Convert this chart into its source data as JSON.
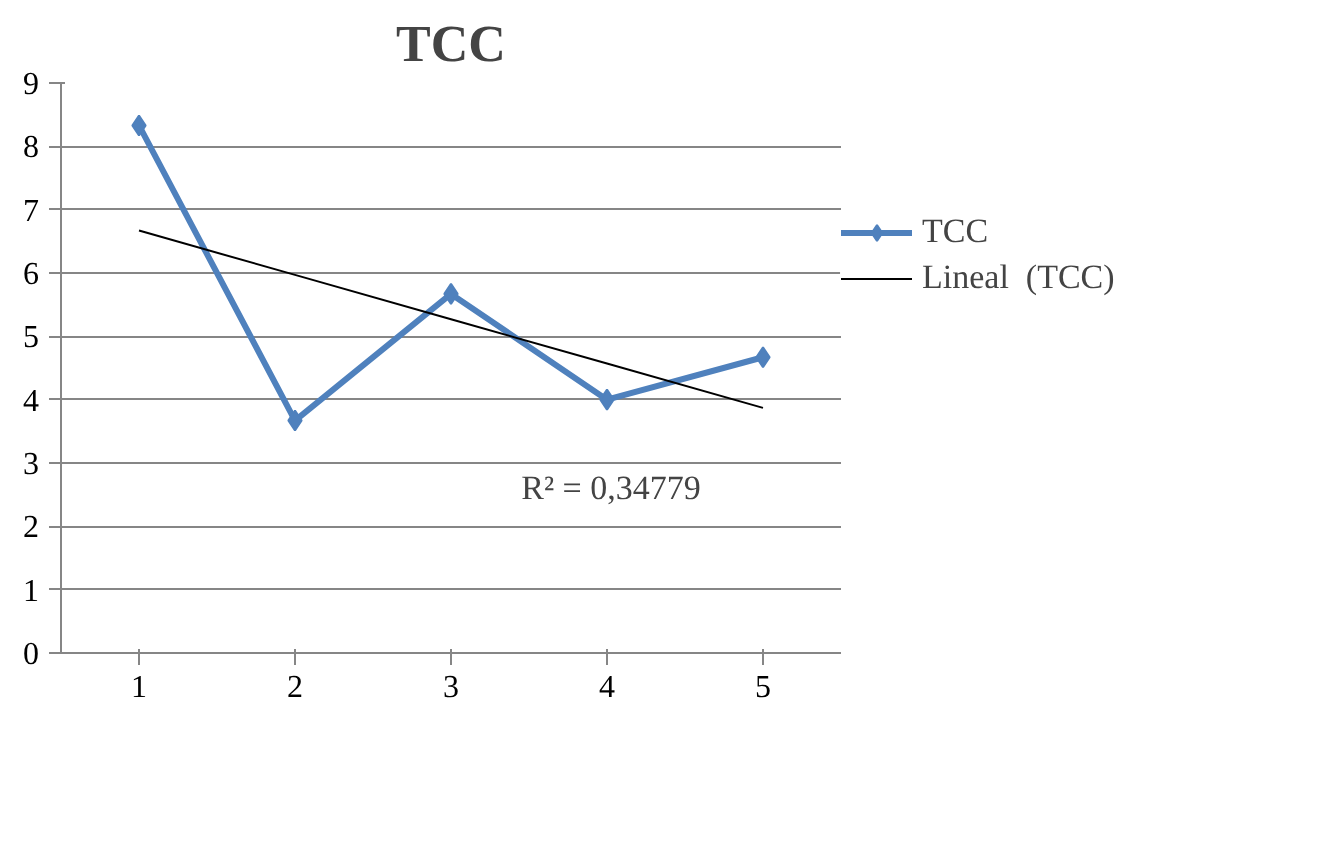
{
  "chart_data": {
    "type": "line",
    "title": "TCC",
    "categories": [
      "1",
      "2",
      "3",
      "4",
      "5"
    ],
    "series": [
      {
        "name": "TCC",
        "color": "#4f81bd",
        "values": [
          8.33,
          3.67,
          5.67,
          4.0,
          4.67
        ],
        "marker": "diamond",
        "line_style": "solid"
      },
      {
        "name": "Lineal  (TCC)",
        "color": "#000000",
        "values": [
          6.67,
          5.97,
          5.27,
          4.57,
          3.87
        ],
        "marker": "none",
        "line_style": "solid"
      }
    ],
    "ylim": [
      0,
      9
    ],
    "yticks": [
      0,
      1,
      2,
      3,
      4,
      5,
      6,
      7,
      8,
      9
    ],
    "grid": "y",
    "legend": "right",
    "annotations": [
      "R² = 0,34779"
    ]
  }
}
